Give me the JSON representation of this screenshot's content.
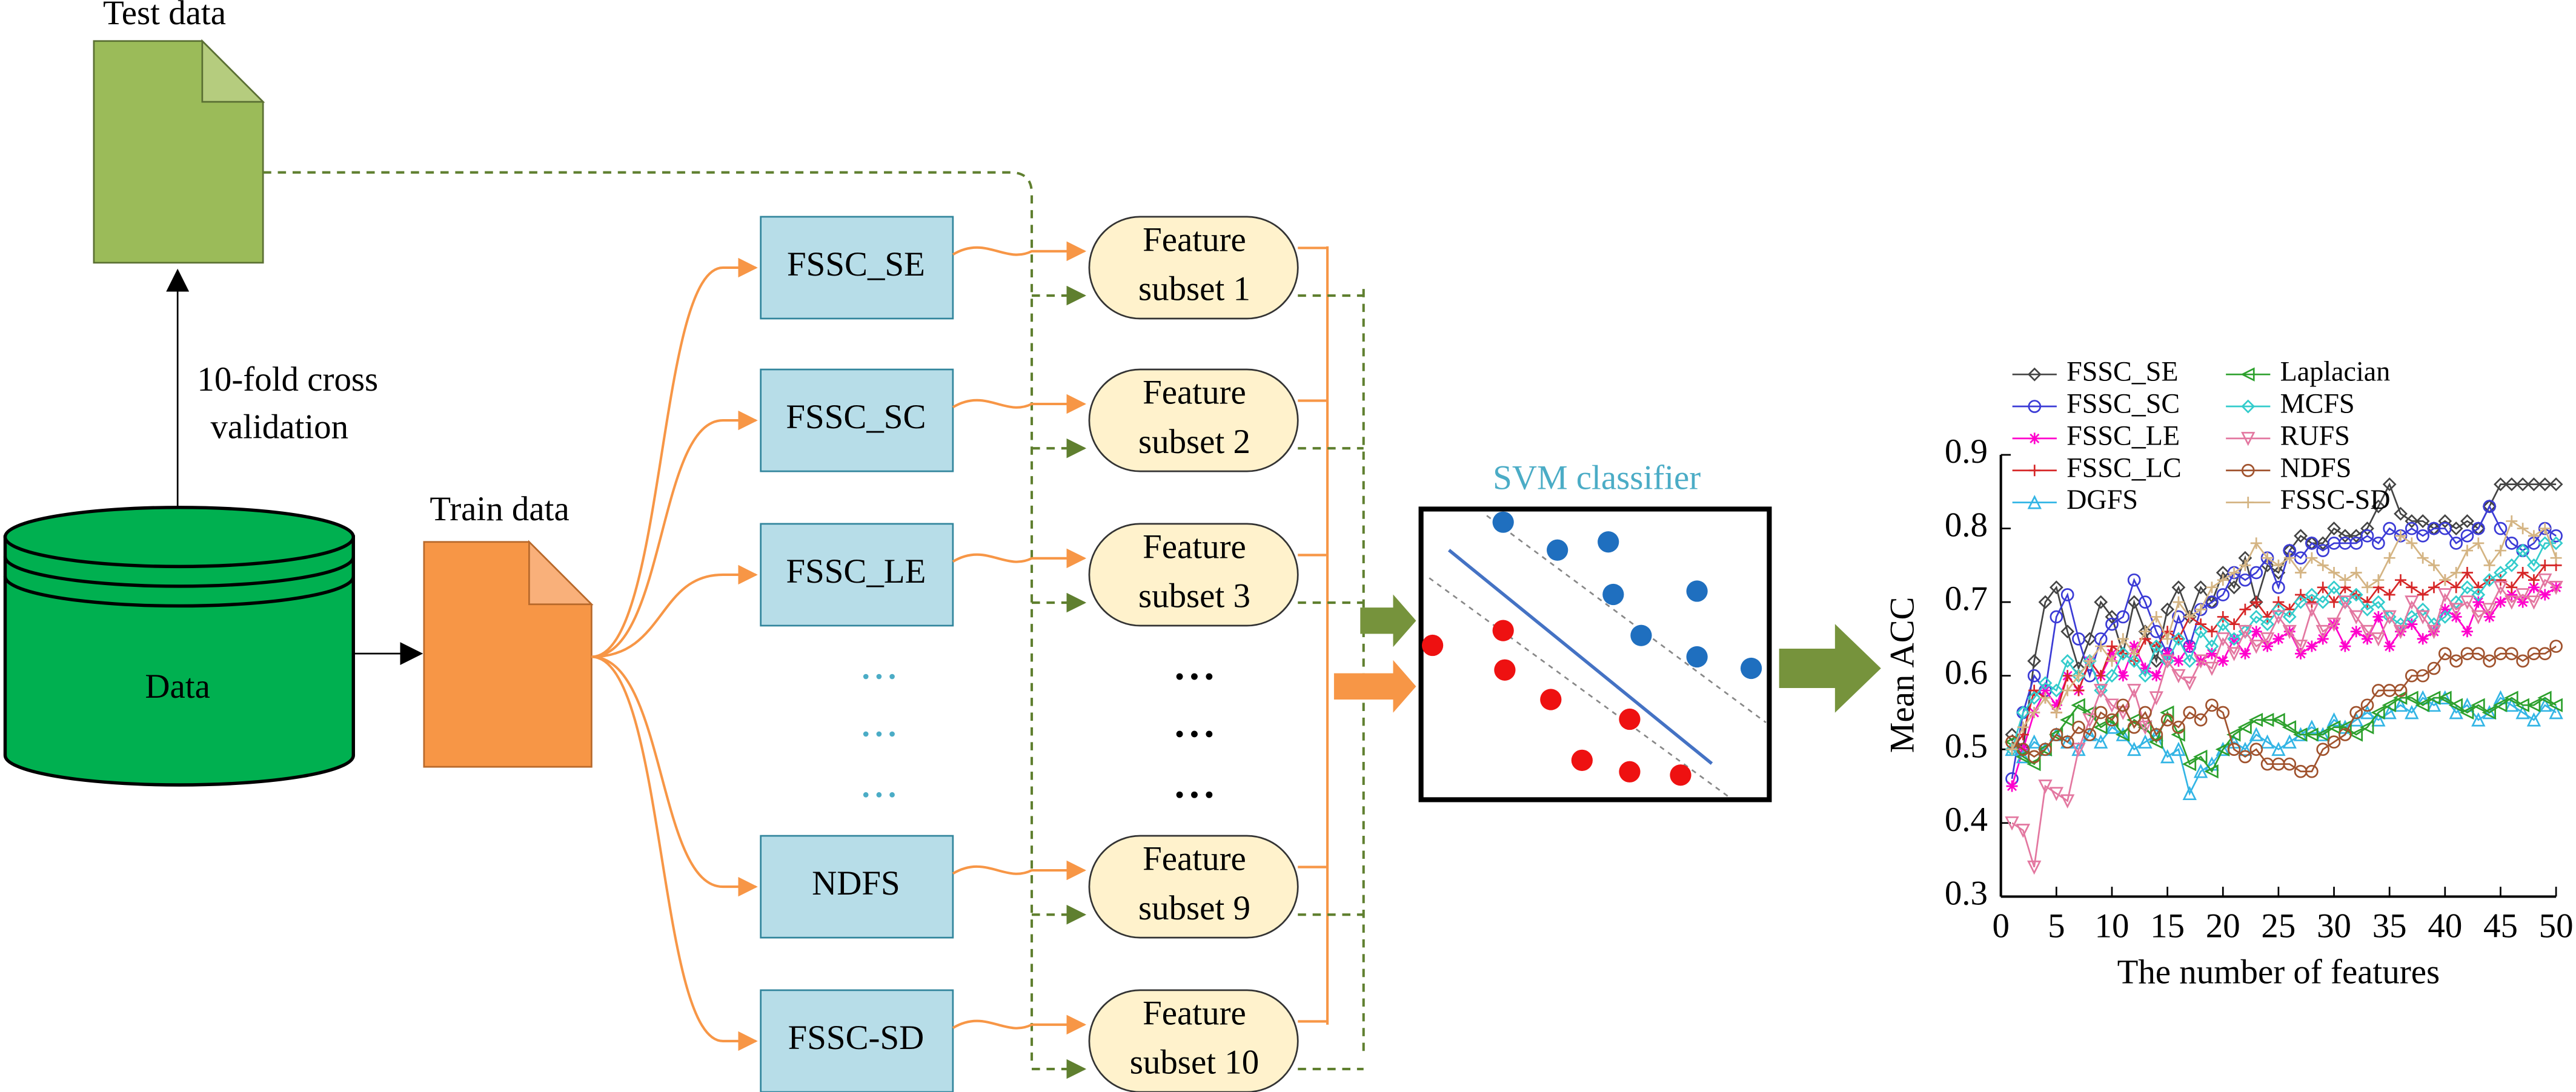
{
  "test_data": {
    "label": "Test data"
  },
  "cross_validation": {
    "lines": [
      "10-fold cross",
      "validation"
    ]
  },
  "data": {
    "label": "Data"
  },
  "train_data": {
    "label": "Train data"
  },
  "methods": [
    "FSSC_SE",
    "FSSC_SC",
    "FSSC_LE",
    "NDFS",
    "FSSC-SD"
  ],
  "feature_subsets": [
    [
      "Feature",
      "subset 1"
    ],
    [
      "Feature",
      "subset 2"
    ],
    [
      "Feature",
      "subset 3"
    ],
    [
      "Feature",
      "subset 9"
    ],
    [
      "Feature",
      "subset 10"
    ]
  ],
  "svm": {
    "title": "SVM classifier"
  },
  "chart_data": {
    "type": "line",
    "xlabel": "The number of features",
    "ylabel": "Mean ACC",
    "xlim": [
      0,
      50
    ],
    "ylim": [
      0.3,
      0.9
    ],
    "xticks": [
      0,
      5,
      10,
      15,
      20,
      25,
      30,
      35,
      40,
      45,
      50
    ],
    "yticks": [
      0.3,
      0.4,
      0.5,
      0.6,
      0.7,
      0.8,
      0.9
    ],
    "x": [
      1,
      2,
      3,
      4,
      5,
      6,
      7,
      8,
      9,
      10,
      11,
      12,
      13,
      14,
      15,
      16,
      17,
      18,
      19,
      20,
      21,
      22,
      23,
      24,
      25,
      26,
      27,
      28,
      29,
      30,
      31,
      32,
      33,
      34,
      35,
      36,
      37,
      38,
      39,
      40,
      41,
      42,
      43,
      44,
      45,
      46,
      47,
      48,
      49,
      50
    ],
    "series": [
      {
        "name": "FSSC_SE",
        "color": "#444444",
        "marker": "diamond",
        "values": [
          0.52,
          0.5,
          0.62,
          0.7,
          0.72,
          0.66,
          0.61,
          0.65,
          0.7,
          0.68,
          0.63,
          0.7,
          0.66,
          0.62,
          0.69,
          0.72,
          0.68,
          0.72,
          0.7,
          0.74,
          0.72,
          0.76,
          0.7,
          0.75,
          0.74,
          0.77,
          0.79,
          0.78,
          0.78,
          0.8,
          0.79,
          0.79,
          0.8,
          0.83,
          0.86,
          0.82,
          0.81,
          0.81,
          0.8,
          0.81,
          0.8,
          0.81,
          0.8,
          0.83,
          0.86,
          0.86,
          0.86,
          0.86,
          0.86,
          0.86
        ]
      },
      {
        "name": "FSSC_SC",
        "color": "#3b3bd6",
        "marker": "circle",
        "values": [
          0.46,
          0.55,
          0.6,
          0.58,
          0.68,
          0.71,
          0.65,
          0.6,
          0.65,
          0.67,
          0.68,
          0.73,
          0.7,
          0.66,
          0.63,
          0.68,
          0.64,
          0.69,
          0.7,
          0.71,
          0.74,
          0.73,
          0.74,
          0.76,
          0.72,
          0.77,
          0.76,
          0.78,
          0.77,
          0.78,
          0.78,
          0.78,
          0.79,
          0.78,
          0.8,
          0.79,
          0.8,
          0.79,
          0.8,
          0.8,
          0.78,
          0.79,
          0.8,
          0.83,
          0.8,
          0.78,
          0.77,
          0.78,
          0.8,
          0.79
        ]
      },
      {
        "name": "FSSC_LE",
        "color": "#ff00cc",
        "marker": "star",
        "values": [
          0.45,
          0.5,
          0.55,
          0.58,
          0.56,
          0.6,
          0.58,
          0.62,
          0.6,
          0.63,
          0.6,
          0.64,
          0.61,
          0.6,
          0.63,
          0.62,
          0.64,
          0.62,
          0.63,
          0.62,
          0.65,
          0.63,
          0.66,
          0.64,
          0.65,
          0.66,
          0.63,
          0.64,
          0.65,
          0.67,
          0.64,
          0.66,
          0.65,
          0.68,
          0.64,
          0.66,
          0.67,
          0.65,
          0.66,
          0.69,
          0.68,
          0.66,
          0.7,
          0.68,
          0.7,
          0.71,
          0.7,
          0.72,
          0.71,
          0.72
        ]
      },
      {
        "name": "FSSC_LC",
        "color": "#d62728",
        "marker": "plus",
        "values": [
          0.5,
          0.52,
          0.58,
          0.57,
          0.55,
          0.6,
          0.58,
          0.62,
          0.6,
          0.64,
          0.63,
          0.62,
          0.65,
          0.64,
          0.66,
          0.65,
          0.68,
          0.67,
          0.66,
          0.68,
          0.67,
          0.69,
          0.7,
          0.68,
          0.7,
          0.69,
          0.71,
          0.7,
          0.72,
          0.7,
          0.72,
          0.71,
          0.7,
          0.72,
          0.71,
          0.73,
          0.72,
          0.71,
          0.72,
          0.73,
          0.72,
          0.74,
          0.72,
          0.73,
          0.73,
          0.72,
          0.74,
          0.73,
          0.75,
          0.75
        ]
      },
      {
        "name": "DGFS",
        "color": "#33b5e5",
        "marker": "triangle-up",
        "values": [
          0.5,
          0.49,
          0.51,
          0.5,
          0.52,
          0.51,
          0.5,
          0.52,
          0.51,
          0.53,
          0.52,
          0.5,
          0.51,
          0.52,
          0.49,
          0.5,
          0.44,
          0.47,
          0.48,
          0.5,
          0.51,
          0.5,
          0.52,
          0.51,
          0.5,
          0.51,
          0.52,
          0.53,
          0.52,
          0.54,
          0.53,
          0.54,
          0.55,
          0.54,
          0.55,
          0.56,
          0.55,
          0.57,
          0.56,
          0.57,
          0.55,
          0.56,
          0.54,
          0.55,
          0.57,
          0.56,
          0.55,
          0.54,
          0.56,
          0.55
        ]
      },
      {
        "name": "Laplacian",
        "color": "#2ca02c",
        "marker": "triangle-left",
        "values": [
          0.51,
          0.49,
          0.48,
          0.5,
          0.52,
          0.54,
          0.56,
          0.55,
          0.53,
          0.54,
          0.52,
          0.54,
          0.53,
          0.51,
          0.55,
          0.52,
          0.48,
          0.49,
          0.47,
          0.5,
          0.52,
          0.53,
          0.54,
          0.54,
          0.54,
          0.53,
          0.52,
          0.52,
          0.52,
          0.53,
          0.53,
          0.52,
          0.53,
          0.55,
          0.56,
          0.57,
          0.57,
          0.56,
          0.57,
          0.57,
          0.56,
          0.55,
          0.56,
          0.55,
          0.56,
          0.57,
          0.56,
          0.56,
          0.57,
          0.56
        ]
      },
      {
        "name": "MCFS",
        "color": "#33cccc",
        "marker": "diamond",
        "values": [
          0.5,
          0.55,
          0.57,
          0.59,
          0.58,
          0.62,
          0.6,
          0.62,
          0.58,
          0.6,
          0.63,
          0.62,
          0.6,
          0.64,
          0.62,
          0.65,
          0.62,
          0.66,
          0.64,
          0.67,
          0.65,
          0.66,
          0.68,
          0.67,
          0.69,
          0.68,
          0.7,
          0.71,
          0.7,
          0.72,
          0.7,
          0.71,
          0.69,
          0.7,
          0.68,
          0.67,
          0.68,
          0.69,
          0.67,
          0.68,
          0.7,
          0.72,
          0.71,
          0.73,
          0.74,
          0.75,
          0.77,
          0.75,
          0.78,
          0.78
        ]
      },
      {
        "name": "RUFS",
        "color": "#e377a0",
        "marker": "triangle-down",
        "values": [
          0.4,
          0.39,
          0.34,
          0.45,
          0.44,
          0.43,
          0.5,
          0.54,
          0.58,
          0.56,
          0.55,
          0.58,
          0.53,
          0.57,
          0.62,
          0.6,
          0.59,
          0.62,
          0.61,
          0.65,
          0.63,
          0.66,
          0.64,
          0.65,
          0.68,
          0.66,
          0.64,
          0.69,
          0.66,
          0.67,
          0.7,
          0.68,
          0.66,
          0.65,
          0.68,
          0.66,
          0.7,
          0.68,
          0.66,
          0.71,
          0.69,
          0.7,
          0.68,
          0.69,
          0.72,
          0.7,
          0.71,
          0.7,
          0.73,
          0.72
        ]
      },
      {
        "name": "NDFS",
        "color": "#a0522d",
        "marker": "circle",
        "values": [
          0.51,
          0.5,
          0.49,
          0.5,
          0.52,
          0.51,
          0.53,
          0.52,
          0.55,
          0.54,
          0.56,
          0.53,
          0.55,
          0.52,
          0.54,
          0.53,
          0.55,
          0.54,
          0.56,
          0.55,
          0.5,
          0.49,
          0.5,
          0.48,
          0.48,
          0.48,
          0.47,
          0.47,
          0.5,
          0.51,
          0.52,
          0.55,
          0.56,
          0.58,
          0.58,
          0.58,
          0.6,
          0.6,
          0.61,
          0.63,
          0.62,
          0.63,
          0.63,
          0.62,
          0.63,
          0.63,
          0.62,
          0.63,
          0.63,
          0.64
        ]
      },
      {
        "name": "FSSC-SD",
        "color": "#d4b483",
        "marker": "plus",
        "values": [
          0.5,
          0.53,
          0.55,
          0.57,
          0.55,
          0.58,
          0.6,
          0.62,
          0.64,
          0.62,
          0.65,
          0.63,
          0.66,
          0.68,
          0.65,
          0.7,
          0.68,
          0.69,
          0.72,
          0.73,
          0.74,
          0.75,
          0.78,
          0.76,
          0.75,
          0.76,
          0.74,
          0.76,
          0.75,
          0.74,
          0.73,
          0.74,
          0.72,
          0.73,
          0.76,
          0.79,
          0.78,
          0.76,
          0.75,
          0.73,
          0.74,
          0.77,
          0.78,
          0.75,
          0.77,
          0.81,
          0.8,
          0.79,
          0.8,
          0.76
        ]
      }
    ]
  }
}
